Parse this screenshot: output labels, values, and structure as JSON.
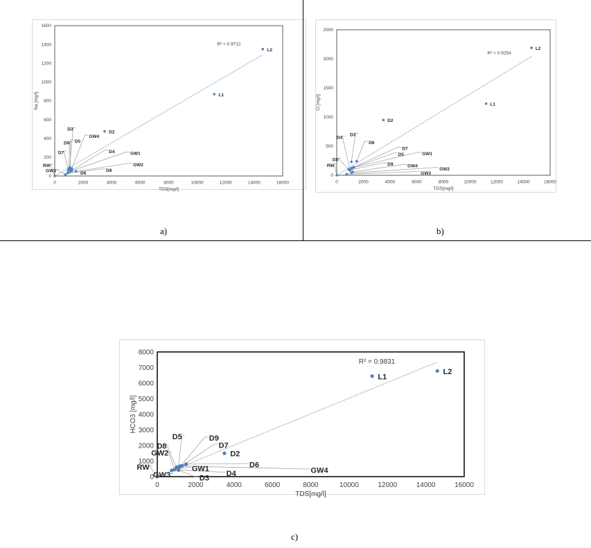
{
  "captions": [
    "a)",
    "b)",
    "c)"
  ],
  "colors": {
    "marker": "#4f81bd",
    "trendline": "#4f81bd",
    "leader": "#a6a6a6",
    "axis_frame": "#595959"
  },
  "chart_data": [
    {
      "type": "scatter",
      "xlabel": "TDS[mg/l]",
      "ylabel": "Na  [mg/l]",
      "xlim": [
        0,
        16000
      ],
      "ylim": [
        0,
        1600
      ],
      "xticks": [
        0,
        2000,
        4000,
        6000,
        8000,
        10000,
        12000,
        14000,
        16000
      ],
      "yticks": [
        0,
        200,
        400,
        600,
        800,
        1000,
        1200,
        1400,
        1600
      ],
      "trendline": {
        "type": "linear",
        "r2_label": "R² = 0.9712",
        "from": [
          0,
          0
        ],
        "to": [
          14600,
          1290
        ]
      },
      "grid": false,
      "points": [
        {
          "label": "RW",
          "x": 0,
          "y": 0
        },
        {
          "label": "GW3",
          "x": 750,
          "y": 15
        },
        {
          "label": "GW2",
          "x": 900,
          "y": 35
        },
        {
          "label": "D8",
          "x": 950,
          "y": 30
        },
        {
          "label": "D6",
          "x": 1500,
          "y": 50
        },
        {
          "label": "GW1",
          "x": 1100,
          "y": 50
        },
        {
          "label": "D4",
          "x": 1200,
          "y": 60
        },
        {
          "label": "D5",
          "x": 1100,
          "y": 75
        },
        {
          "label": "GW4",
          "x": 1200,
          "y": 80
        },
        {
          "label": "D9",
          "x": 1000,
          "y": 80
        },
        {
          "label": "D7",
          "x": 950,
          "y": 60
        },
        {
          "label": "D3",
          "x": 1050,
          "y": 90
        },
        {
          "label": "D2",
          "x": 3500,
          "y": 475
        },
        {
          "label": "L1",
          "x": 11200,
          "y": 870
        },
        {
          "label": "L2",
          "x": 14600,
          "y": 1350
        }
      ]
    },
    {
      "type": "scatter",
      "xlabel": "TDS[mg/l]",
      "ylabel": "Cl  [mg/l]",
      "xlim": [
        0,
        16000
      ],
      "ylim": [
        0,
        2500
      ],
      "xticks": [
        0,
        2000,
        4000,
        6000,
        8000,
        10000,
        12000,
        14000,
        16000
      ],
      "yticks": [
        0,
        500,
        1000,
        1500,
        2000,
        2500
      ],
      "trendline": {
        "type": "linear",
        "r2_label": "R² = 0.9254",
        "from": [
          0,
          0
        ],
        "to": [
          14600,
          2040
        ]
      },
      "grid": false,
      "points": [
        {
          "label": "RW",
          "x": 0,
          "y": 0
        },
        {
          "label": "GW3",
          "x": 750,
          "y": 20
        },
        {
          "label": "GW2",
          "x": 1100,
          "y": 40
        },
        {
          "label": "GW4",
          "x": 1200,
          "y": 60
        },
        {
          "label": "D9",
          "x": 1000,
          "y": 90
        },
        {
          "label": "D5",
          "x": 1100,
          "y": 120
        },
        {
          "label": "GW1",
          "x": 1200,
          "y": 130
        },
        {
          "label": "D7",
          "x": 1300,
          "y": 140
        },
        {
          "label": "D8",
          "x": 900,
          "y": 100
        },
        {
          "label": "D4",
          "x": 1000,
          "y": 80
        },
        {
          "label": "D3",
          "x": 1100,
          "y": 230
        },
        {
          "label": "D6",
          "x": 1500,
          "y": 240
        },
        {
          "label": "D2",
          "x": 3500,
          "y": 950
        },
        {
          "label": "L1",
          "x": 11200,
          "y": 1230
        },
        {
          "label": "L2",
          "x": 14600,
          "y": 2190
        }
      ]
    },
    {
      "type": "scatter",
      "xlabel": "TDS[mg/l]",
      "ylabel": "HCO3  [mg/l]",
      "xlim": [
        0,
        16000
      ],
      "ylim": [
        0,
        8000
      ],
      "xticks": [
        0,
        2000,
        4000,
        6000,
        8000,
        10000,
        12000,
        14000,
        16000
      ],
      "yticks": [
        0,
        1000,
        2000,
        3000,
        4000,
        5000,
        6000,
        7000,
        8000
      ],
      "trendline": {
        "type": "linear",
        "r2_label": "R² = 0.9831",
        "from": [
          0,
          0
        ],
        "to": [
          14600,
          7350
        ]
      },
      "grid": false,
      "points": [
        {
          "label": "RW",
          "x": 0,
          "y": 0
        },
        {
          "label": "GW3",
          "x": 750,
          "y": 400
        },
        {
          "label": "GW2",
          "x": 900,
          "y": 450
        },
        {
          "label": "D8",
          "x": 1000,
          "y": 600
        },
        {
          "label": "D5",
          "x": 1100,
          "y": 620
        },
        {
          "label": "D9",
          "x": 1200,
          "y": 650
        },
        {
          "label": "D7",
          "x": 1300,
          "y": 700
        },
        {
          "label": "D6",
          "x": 1500,
          "y": 800
        },
        {
          "label": "GW1",
          "x": 1100,
          "y": 500
        },
        {
          "label": "GW4",
          "x": 1200,
          "y": 680
        },
        {
          "label": "D4",
          "x": 1100,
          "y": 430
        },
        {
          "label": "D3",
          "x": 1100,
          "y": 420
        },
        {
          "label": "D2",
          "x": 3500,
          "y": 1500
        },
        {
          "label": "L1",
          "x": 11200,
          "y": 6450
        },
        {
          "label": "L2",
          "x": 14600,
          "y": 6780
        }
      ]
    }
  ]
}
